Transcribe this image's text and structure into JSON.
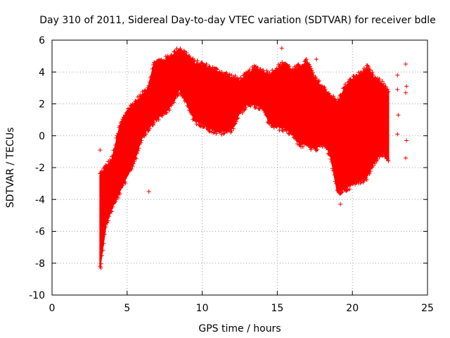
{
  "chart_data": {
    "type": "scatter",
    "title": "Day 310 of 2011, Sidereal Day-to-day VTEC variation (SDTVAR) for receiver bdle",
    "xlabel": "GPS time / hours",
    "ylabel": "SDTVAR / TECUs",
    "xlim": [
      0,
      25
    ],
    "ylim": [
      -10,
      6
    ],
    "grid": true,
    "marker": "+",
    "color": "#ff0000",
    "x_ticks": [
      0,
      5,
      10,
      15,
      20,
      25
    ],
    "y_ticks": [
      -10,
      -8,
      -6,
      -4,
      -2,
      0,
      2,
      4,
      6
    ],
    "x_tick_labels": [
      "0",
      "5",
      "10",
      "15",
      "20",
      "25"
    ],
    "y_tick_labels": [
      "-10",
      "-8",
      "-6",
      "-4",
      "-2",
      "0",
      "2",
      "4",
      "6"
    ],
    "series": [
      {
        "name": "SDTVAR",
        "envelope": [
          {
            "x": 3.2,
            "low": -8.2,
            "high": -2.5
          },
          {
            "x": 3.6,
            "low": -5.5,
            "high": -2.0
          },
          {
            "x": 4.0,
            "low": -4.5,
            "high": -1.5
          },
          {
            "x": 4.5,
            "low": -3.5,
            "high": 0.5
          },
          {
            "x": 5.0,
            "low": -2.5,
            "high": 1.5
          },
          {
            "x": 5.5,
            "low": -1.5,
            "high": 2.0
          },
          {
            "x": 6.0,
            "low": 0.0,
            "high": 2.5
          },
          {
            "x": 6.4,
            "low": 0.5,
            "high": 3.0
          },
          {
            "x": 6.8,
            "low": 1.0,
            "high": 4.5
          },
          {
            "x": 7.5,
            "low": 1.5,
            "high": 4.7
          },
          {
            "x": 8.0,
            "low": 2.0,
            "high": 5.0
          },
          {
            "x": 8.5,
            "low": 3.0,
            "high": 5.4
          },
          {
            "x": 9.0,
            "low": 2.0,
            "high": 5.0
          },
          {
            "x": 9.5,
            "low": 1.0,
            "high": 4.5
          },
          {
            "x": 10.0,
            "low": 0.8,
            "high": 4.4
          },
          {
            "x": 10.5,
            "low": 0.5,
            "high": 4.2
          },
          {
            "x": 11.0,
            "low": 0.3,
            "high": 4.0
          },
          {
            "x": 11.5,
            "low": 0.3,
            "high": 3.8
          },
          {
            "x": 12.0,
            "low": 0.5,
            "high": 3.6
          },
          {
            "x": 12.5,
            "low": 1.5,
            "high": 3.4
          },
          {
            "x": 13.0,
            "low": 2.0,
            "high": 3.8
          },
          {
            "x": 13.5,
            "low": 2.0,
            "high": 4.2
          },
          {
            "x": 14.0,
            "low": 1.8,
            "high": 4.0
          },
          {
            "x": 14.5,
            "low": 0.8,
            "high": 3.8
          },
          {
            "x": 15.0,
            "low": 0.6,
            "high": 4.2
          },
          {
            "x": 15.5,
            "low": 0.5,
            "high": 4.5
          },
          {
            "x": 16.0,
            "low": 0.2,
            "high": 4.0
          },
          {
            "x": 16.5,
            "low": -0.5,
            "high": 4.3
          },
          {
            "x": 17.0,
            "low": -0.5,
            "high": 4.6
          },
          {
            "x": 17.5,
            "low": -0.8,
            "high": 3.5
          },
          {
            "x": 18.0,
            "low": -0.5,
            "high": 3.0
          },
          {
            "x": 18.5,
            "low": -1.0,
            "high": 2.5
          },
          {
            "x": 19.0,
            "low": -3.5,
            "high": 2.0
          },
          {
            "x": 19.5,
            "low": -3.3,
            "high": 3.0
          },
          {
            "x": 20.0,
            "low": -3.0,
            "high": 3.5
          },
          {
            "x": 20.5,
            "low": -2.8,
            "high": 3.8
          },
          {
            "x": 21.0,
            "low": -2.5,
            "high": 4.2
          },
          {
            "x": 21.5,
            "low": -1.5,
            "high": 3.5
          },
          {
            "x": 22.0,
            "low": -1.0,
            "high": 3.2
          },
          {
            "x": 22.4,
            "low": -1.5,
            "high": 2.8
          }
        ],
        "outliers": [
          {
            "x": 3.2,
            "y": -0.9
          },
          {
            "x": 3.25,
            "y": -8.3
          },
          {
            "x": 6.45,
            "y": -3.5
          },
          {
            "x": 15.3,
            "y": 5.5
          },
          {
            "x": 17.6,
            "y": 4.8
          },
          {
            "x": 19.2,
            "y": -4.3
          },
          {
            "x": 23.0,
            "y": 3.8
          },
          {
            "x": 23.0,
            "y": 2.9
          },
          {
            "x": 23.05,
            "y": 1.3
          },
          {
            "x": 23.0,
            "y": 0.1
          },
          {
            "x": 23.55,
            "y": 4.5
          },
          {
            "x": 23.6,
            "y": 3.1
          },
          {
            "x": 23.55,
            "y": 2.7
          },
          {
            "x": 23.6,
            "y": -0.3
          },
          {
            "x": 23.55,
            "y": -1.4
          }
        ]
      }
    ]
  }
}
